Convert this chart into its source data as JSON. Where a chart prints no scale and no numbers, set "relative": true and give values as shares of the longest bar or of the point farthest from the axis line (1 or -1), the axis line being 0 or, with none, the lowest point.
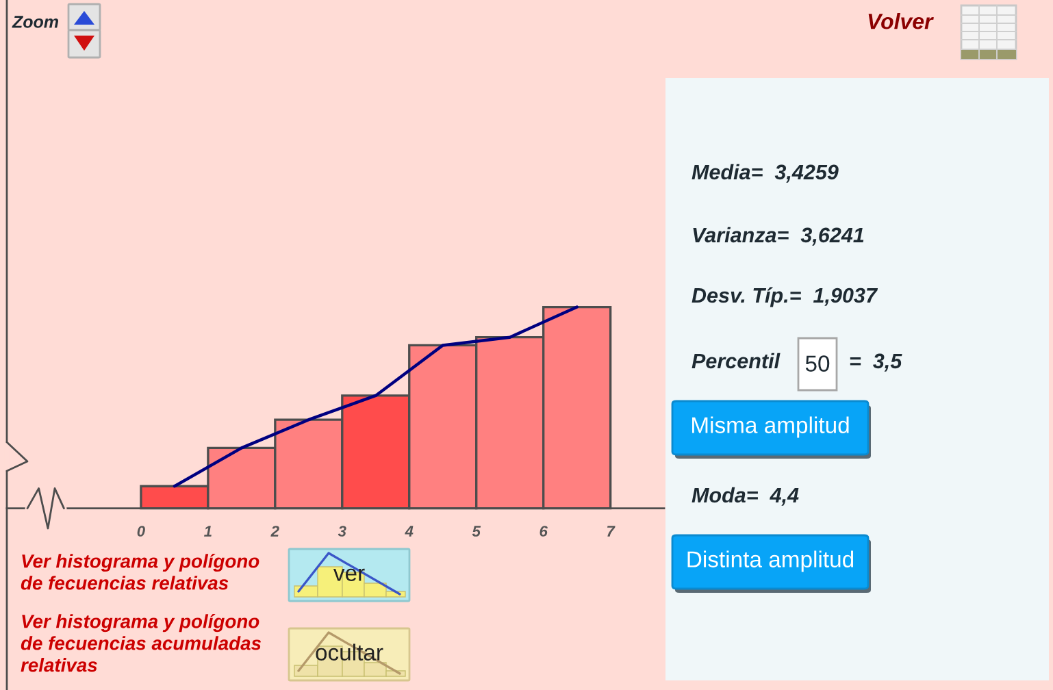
{
  "chart_data": {
    "type": "histogram",
    "bins": [
      0,
      1,
      2,
      3,
      4,
      5,
      6,
      7
    ],
    "values": [
      0.11,
      0.3,
      0.44,
      0.56,
      0.81,
      0.85,
      1
    ],
    "colors": [
      "#ff4c4c",
      "#ff8080",
      "#ff8080",
      "#ff4c4c",
      "#ff8080",
      "#ff8080",
      "#ff8080"
    ],
    "relative": true,
    "series": [
      {
        "type": "line",
        "x": [
          0.5,
          1.5,
          2.5,
          3.5,
          4.5,
          5.5,
          6.5
        ],
        "values": [
          0.11,
          0.3,
          0.44,
          0.56,
          0.81,
          0.85,
          1
        ],
        "color": "#000080"
      }
    ],
    "xlim": [
      -2,
      7.8
    ],
    "xticks": [
      0,
      1,
      2,
      3,
      4,
      5,
      6,
      7
    ],
    "grid": false,
    "annotations": [
      "Zoom",
      "Volver",
      "Media=  3,4259",
      "Varianza=  3,6241",
      "Desv. Típ.=  1,9037",
      "Percentil",
      "50",
      "=  3,5",
      "Misma amplitud",
      "Moda=  4,4",
      "Distinta amplitud",
      "Ver histograma y polígono\nde fecuencias relativas",
      "ver",
      "Ver histograma y polígono\nde fecuencias acumuladas\nrelativas",
      "ocultar"
    ]
  }
}
